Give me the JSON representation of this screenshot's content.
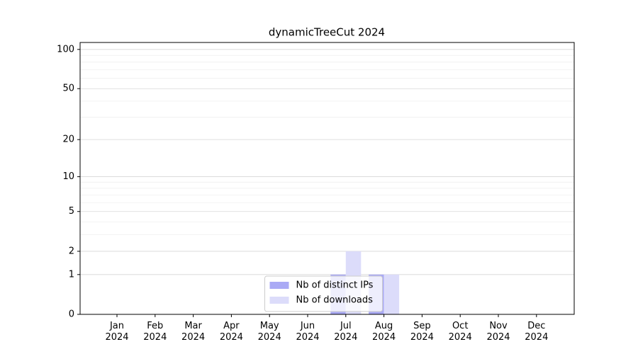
{
  "chart_data": {
    "type": "bar",
    "title": "dynamicTreeCut 2024",
    "categories": [
      "Jan\n2024",
      "Feb\n2024",
      "Mar\n2024",
      "Apr\n2024",
      "May\n2024",
      "Jun\n2024",
      "Jul\n2024",
      "Aug\n2024",
      "Sep\n2024",
      "Oct\n2024",
      "Nov\n2024",
      "Dec\n2024"
    ],
    "series": [
      {
        "name": "Nb of distinct IPs",
        "color": "#aaaaf5",
        "values": [
          0,
          0,
          0,
          0,
          0,
          0,
          1,
          1,
          0,
          0,
          0,
          0
        ]
      },
      {
        "name": "Nb of downloads",
        "color": "#dcdcfa",
        "values": [
          0,
          0,
          0,
          0,
          0,
          0,
          2,
          1,
          0,
          0,
          0,
          0
        ]
      }
    ],
    "yscale": "log1p",
    "ylim": [
      0,
      113
    ],
    "yticks": [
      0,
      1,
      2,
      5,
      10,
      20,
      50,
      100
    ],
    "minor_yticks": [
      3,
      4,
      6,
      7,
      8,
      9,
      30,
      40,
      60,
      70,
      80,
      90
    ],
    "grid": true,
    "legend": "lower center"
  }
}
